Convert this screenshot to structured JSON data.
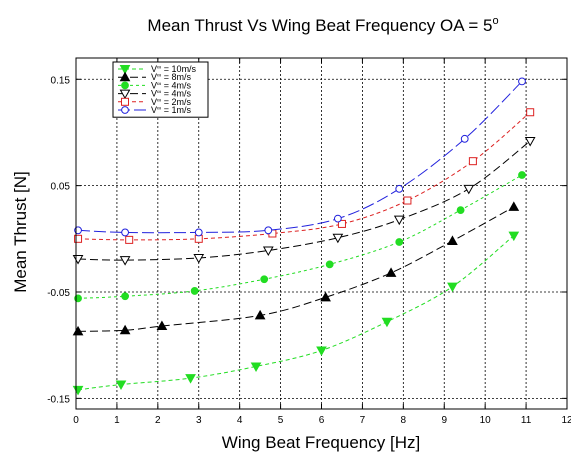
{
  "chart_data": {
    "type": "line",
    "title": "Mean Thrust Vs Wing Beat Frequency OA = 5",
    "title_superscript": "o",
    "xlabel": "Wing Beat Frequency [Hz]",
    "ylabel": "Mean Thrust [N]",
    "xlim": [
      0,
      12
    ],
    "ylim": [
      -0.16,
      0.17
    ],
    "xticks": [
      0,
      1,
      2,
      3,
      4,
      5,
      6,
      7,
      8,
      9,
      10,
      11,
      12
    ],
    "xtick_labels": [
      "0",
      "1",
      "2",
      "3",
      "4",
      "5",
      "6",
      "7",
      "8",
      "9",
      "10",
      "11",
      "12"
    ],
    "yticks": [
      -0.15,
      -0.05,
      0.05,
      0.15
    ],
    "ytick_labels": [
      "-0.15",
      "-0.05",
      "0.05",
      "0.15"
    ],
    "grid": true,
    "legend_position": "top-left",
    "series": [
      {
        "name": "V = 10m/s",
        "legend_label": {
          "v": "V",
          "sub": "∞",
          "rest": " = 10m/s"
        },
        "color": "#22dd22",
        "dash": "4,3",
        "marker": "triangle-down",
        "filled": true,
        "x": [
          0.05,
          1.1,
          2.8,
          4.4,
          6.0,
          7.6,
          9.2,
          10.7
        ],
        "y": [
          -0.142,
          -0.137,
          -0.131,
          -0.12,
          -0.105,
          -0.078,
          -0.045,
          0.003
        ]
      },
      {
        "name": "V = 8m/s",
        "legend_label": {
          "v": "V",
          "sub": "∞",
          "rest": " = 8m/s"
        },
        "color": "#000000",
        "dash": "8,4",
        "marker": "triangle-up",
        "filled": true,
        "x": [
          0.05,
          1.2,
          2.1,
          4.5,
          6.1,
          7.7,
          9.2,
          10.7
        ],
        "y": [
          -0.087,
          -0.086,
          -0.082,
          -0.072,
          -0.055,
          -0.032,
          -0.002,
          0.03
        ]
      },
      {
        "name": "V = 4m/s",
        "legend_label": {
          "v": "V",
          "sub": "∞",
          "rest": " = 4m/s"
        },
        "color": "#22dd22",
        "dash": "3,3",
        "marker": "circle",
        "filled": true,
        "x": [
          0.05,
          1.2,
          2.9,
          4.6,
          6.2,
          7.9,
          9.4,
          10.9
        ],
        "y": [
          -0.056,
          -0.054,
          -0.049,
          -0.038,
          -0.024,
          -0.003,
          0.027,
          0.06
        ]
      },
      {
        "name": "V = 4m/s",
        "legend_label": {
          "v": "V",
          "sub": "∞",
          "rest": " = 4m/s"
        },
        "color": "#000000",
        "dash": "8,4",
        "marker": "triangle-down",
        "filled": false,
        "x": [
          0.05,
          1.2,
          3.0,
          4.7,
          6.4,
          7.9,
          9.6,
          11.1
        ],
        "y": [
          -0.019,
          -0.02,
          -0.018,
          -0.011,
          0.001,
          0.018,
          0.047,
          0.092
        ]
      },
      {
        "name": "V = 2m/s",
        "legend_label": {
          "v": "V",
          "sub": "∞",
          "rest": " = 2m/s"
        },
        "color": "#dd2222",
        "dash": "4,3",
        "marker": "square",
        "filled": false,
        "x": [
          0.05,
          1.3,
          3.0,
          4.8,
          6.5,
          8.1,
          9.7,
          11.1
        ],
        "y": [
          0.0,
          -0.001,
          0.0,
          0.005,
          0.014,
          0.036,
          0.073,
          0.119
        ]
      },
      {
        "name": "V = 1m/s",
        "legend_label": {
          "v": "V",
          "sub": "∞",
          "rest": " = 1m/s"
        },
        "color": "#2222dd",
        "dash": "12,4",
        "marker": "circle",
        "filled": false,
        "x": [
          0.05,
          1.2,
          3.0,
          4.7,
          6.4,
          7.9,
          9.5,
          10.9
        ],
        "y": [
          0.008,
          0.006,
          0.006,
          0.008,
          0.019,
          0.047,
          0.094,
          0.148
        ]
      }
    ]
  }
}
